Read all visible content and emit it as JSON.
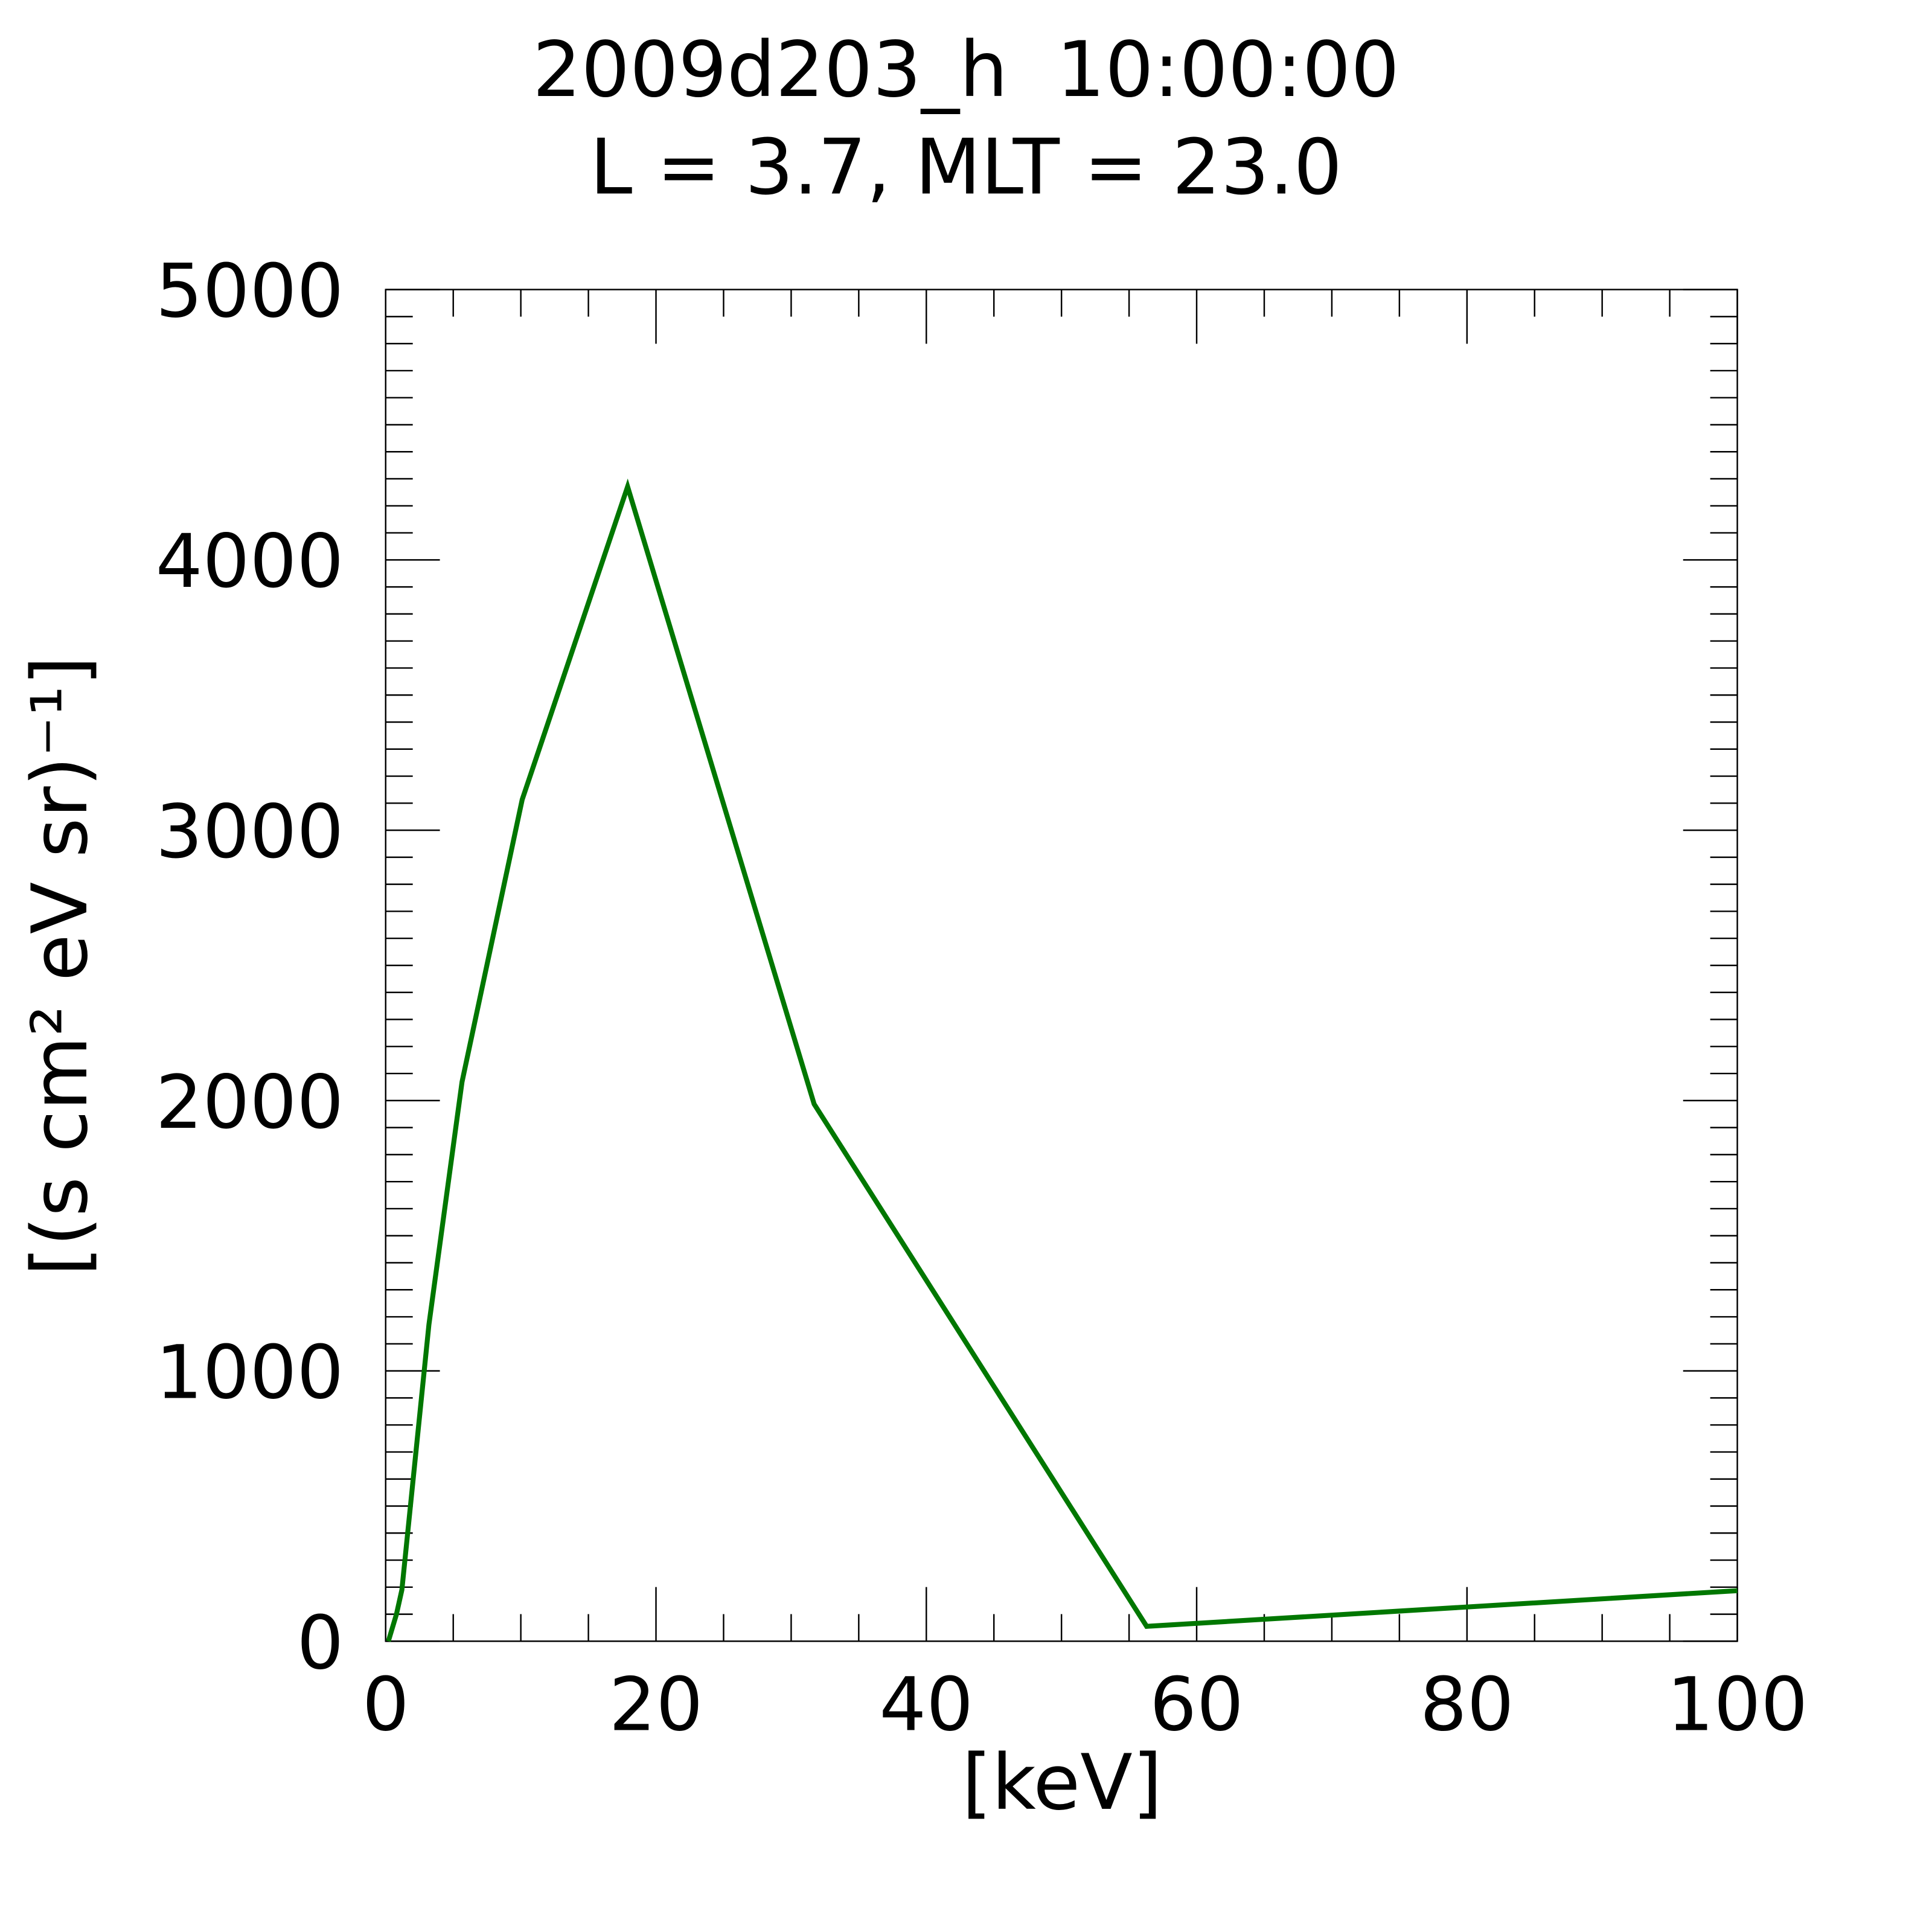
{
  "chart_data": {
    "type": "line",
    "title": "2009d203_h  10:00:00",
    "subtitle": "L = 3.7, MLT = 23.0",
    "x_label": "[keV]",
    "y_label": "[(s cm² eV sr)⁻¹]",
    "x": [
      0.2,
      0.8,
      1.2,
      3.2,
      5.65,
      10.1,
      17.9,
      31.7,
      56.3,
      100
    ],
    "values": [
      0,
      100,
      190,
      1171,
      2069,
      3113,
      4271,
      1987,
      55,
      187
    ],
    "color": "#007700",
    "xlim": [
      0,
      100
    ],
    "xticks": [
      0,
      20,
      40,
      60,
      80,
      100
    ],
    "ylim": [
      0,
      5000
    ],
    "yticks": [
      0,
      1000,
      2000,
      3000,
      4000,
      5000
    ],
    "grid": false
  }
}
